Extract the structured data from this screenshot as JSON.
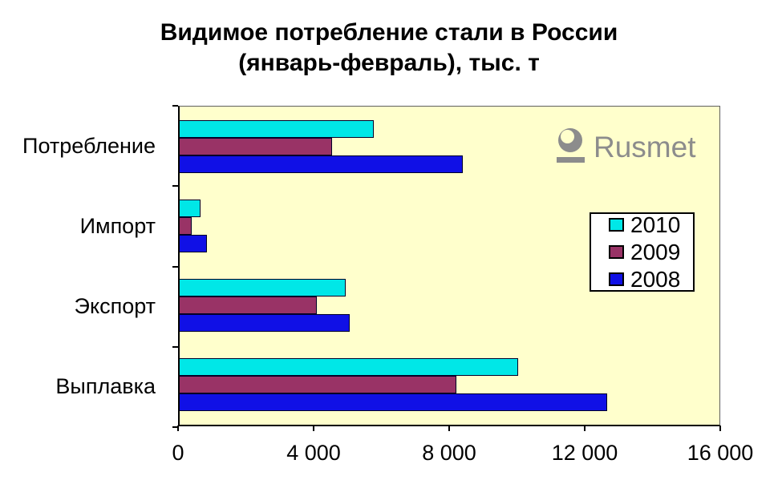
{
  "title": {
    "line1": "Видимое потребление стали в России",
    "line2": "(январь-февраль), тыс. т"
  },
  "watermark": {
    "text": "Rusmet",
    "color": "#8c8c8c",
    "icon": "rusmet-logo-icon"
  },
  "chart_data": {
    "type": "bar",
    "orientation": "horizontal",
    "title": "Видимое потребление стали в России (январь-февраль), тыс. т",
    "plot_background": "#ffffcc",
    "grid": false,
    "categories": [
      "Потребление",
      "Импорт",
      "Экспорт",
      "Выплавка"
    ],
    "series": [
      {
        "name": "2010",
        "color": "#00e7e7",
        "values": [
          5750,
          620,
          4920,
          10040
        ]
      },
      {
        "name": "2009",
        "color": "#993366",
        "values": [
          4520,
          350,
          4060,
          8210
        ]
      },
      {
        "name": "2008",
        "color": "#1010e6",
        "values": [
          8400,
          800,
          5040,
          12660
        ]
      }
    ],
    "xlim": [
      0,
      16000
    ],
    "x_tick_values": [
      0,
      4000,
      8000,
      12000,
      16000
    ],
    "x_tick_labels": [
      "0",
      "4 000",
      "8 000",
      "12 000",
      "16 000"
    ],
    "ylabel": "",
    "xlabel": "",
    "legend_position": "right-middle",
    "legend_entries": [
      "2010",
      "2009",
      "2008"
    ]
  }
}
